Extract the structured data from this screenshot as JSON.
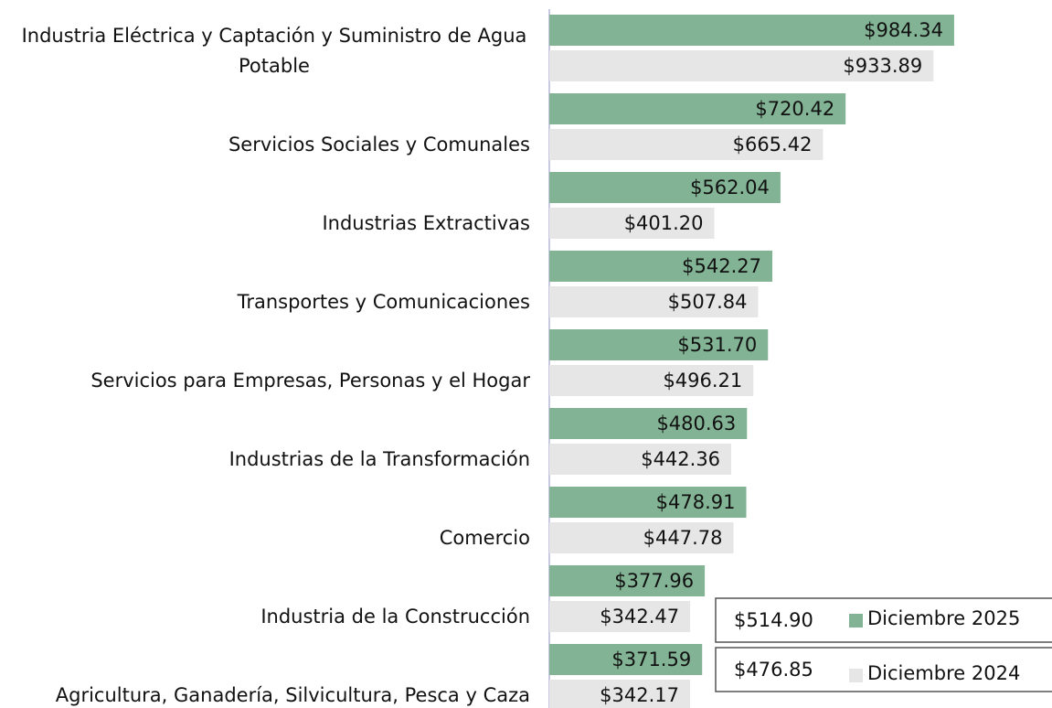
{
  "chart_data": {
    "type": "bar",
    "orientation": "horizontal",
    "categories": [
      "Industria Eléctrica y Captación y Suministro de Agua Potable",
      "Servicios Sociales y Comunales",
      "Industrias Extractivas",
      "Transportes y Comunicaciones",
      "Servicios para Empresas, Personas y el Hogar",
      "Industrias de la Transformación",
      "Comercio",
      "Industria de la Construcción",
      "Agricultura, Ganadería, Silvicultura, Pesca y Caza"
    ],
    "series": [
      {
        "name": "Diciembre 2025",
        "color": "#82b394",
        "values": [
          984.34,
          720.42,
          562.04,
          542.27,
          531.7,
          480.63,
          478.91,
          377.96,
          371.59
        ],
        "value_labels": [
          "$984.34",
          "$720.42",
          "$562.04",
          "$542.27",
          "$531.70",
          "$480.63",
          "$478.91",
          "$377.96",
          "$371.59"
        ],
        "summary": 514.9,
        "summary_label": "$514.90"
      },
      {
        "name": "Diciembre 2024",
        "color": "#e6e6e6",
        "values": [
          933.89,
          665.42,
          401.2,
          507.84,
          496.21,
          442.36,
          447.78,
          342.47,
          342.17
        ],
        "value_labels": [
          "$933.89",
          "$665.42",
          "$401.20",
          "$507.84",
          "$496.21",
          "$442.36",
          "$447.78",
          "$342.47",
          "$342.17"
        ],
        "summary": 476.85,
        "summary_label": "$476.85"
      }
    ],
    "xlim": [
      0,
      1000
    ]
  }
}
